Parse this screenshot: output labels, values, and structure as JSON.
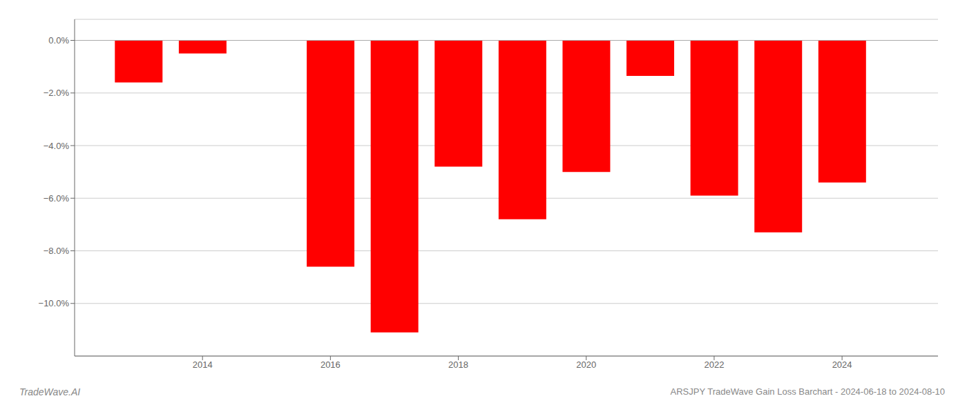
{
  "chart_data": {
    "type": "bar",
    "x": [
      2013,
      2014,
      2016,
      2017,
      2018,
      2019,
      2020,
      2021,
      2022,
      2023,
      2024
    ],
    "values": [
      -1.6,
      -0.5,
      -8.6,
      -11.1,
      -4.8,
      -6.8,
      -5.0,
      -1.35,
      -5.9,
      -7.3,
      -5.4
    ],
    "color": "#ff0000",
    "xlim": [
      2012.0,
      2025.5
    ],
    "xticks": [
      2014,
      2016,
      2018,
      2020,
      2022,
      2024
    ],
    "ylim": [
      -12.0,
      0.8
    ],
    "yticks": [
      {
        "value": 0,
        "label": "0.0%"
      },
      {
        "value": -2,
        "label": "−2.0%"
      },
      {
        "value": -4,
        "label": "−4.0%"
      },
      {
        "value": -6,
        "label": "−6.0%"
      },
      {
        "value": -8,
        "label": "−8.0%"
      },
      {
        "value": -10,
        "label": "−10.0%"
      }
    ],
    "grid": true,
    "annotations": [
      "TradeWave.AI",
      "ARSJPY TradeWave Gain Loss Barchart - 2024-06-18 to 2024-08-10"
    ]
  }
}
